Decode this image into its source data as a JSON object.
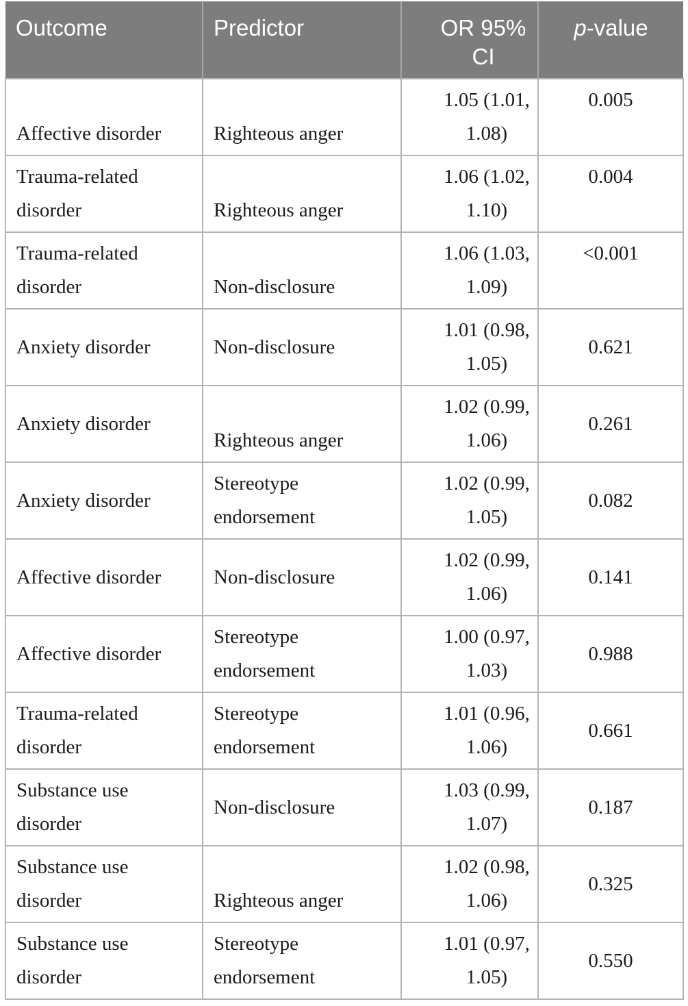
{
  "colors": {
    "header_bg": "#7d7d7d",
    "header_text": "#ffffff",
    "header_divider": "#a6a6a6",
    "body_text": "#1b1b1b",
    "border": "#b3b3b3",
    "page_bg": "#ffffff"
  },
  "table": {
    "headers": [
      {
        "lines": [
          "Outcome"
        ]
      },
      {
        "lines": [
          "Predictor"
        ]
      },
      {
        "lines": [
          "OR 95%",
          "CI"
        ]
      },
      {
        "italic_prefix": "p",
        "rest": "-value"
      }
    ],
    "row_cell_keys": [
      "outcome",
      "predictor",
      "or_ci",
      "p_value"
    ],
    "rows": [
      {
        "outcome": [
          "",
          "Affective disorder"
        ],
        "predictor": [
          "",
          "Righteous anger"
        ],
        "or_ci": [
          "1.05 (1.01,",
          "1.08)"
        ],
        "p_value": [
          "0.005",
          ""
        ]
      },
      {
        "outcome": [
          "Trauma-related",
          "disorder"
        ],
        "predictor": [
          "",
          "Righteous anger"
        ],
        "or_ci": [
          "1.06 (1.02,",
          "1.10)"
        ],
        "p_value": [
          "0.004",
          ""
        ]
      },
      {
        "outcome": [
          "Trauma-related",
          "disorder"
        ],
        "predictor": [
          "",
          "Non-disclosure"
        ],
        "or_ci": [
          "1.06 (1.03,",
          "1.09)"
        ],
        "p_value": [
          "<0.001",
          ""
        ]
      },
      {
        "outcome": [
          "Anxiety disorder"
        ],
        "predictor": [
          "Non-disclosure"
        ],
        "or_ci": [
          "1.01 (0.98,",
          "1.05)"
        ],
        "p_value": [
          "0.621"
        ]
      },
      {
        "outcome": [
          "Anxiety disorder"
        ],
        "predictor": [
          "",
          "Righteous anger"
        ],
        "or_ci": [
          "1.02 (0.99,",
          "1.06)"
        ],
        "p_value": [
          "0.261"
        ]
      },
      {
        "outcome": [
          "Anxiety disorder"
        ],
        "predictor": [
          "Stereotype",
          "endorsement"
        ],
        "or_ci": [
          "1.02 (0.99,",
          "1.05)"
        ],
        "p_value": [
          "0.082"
        ]
      },
      {
        "outcome": [
          "Affective disorder"
        ],
        "predictor": [
          "Non-disclosure"
        ],
        "or_ci": [
          "1.02 (0.99,",
          "1.06)"
        ],
        "p_value": [
          "0.141"
        ]
      },
      {
        "outcome": [
          "Affective disorder"
        ],
        "predictor": [
          "Stereotype",
          "endorsement"
        ],
        "or_ci": [
          "1.00 (0.97,",
          "1.03)"
        ],
        "p_value": [
          "0.988"
        ]
      },
      {
        "outcome": [
          "Trauma-related",
          "disorder"
        ],
        "predictor": [
          "Stereotype",
          "endorsement"
        ],
        "or_ci": [
          "1.01 (0.96,",
          "1.06)"
        ],
        "p_value": [
          "0.661"
        ]
      },
      {
        "outcome": [
          "Substance use",
          "disorder"
        ],
        "predictor": [
          "Non-disclosure"
        ],
        "or_ci": [
          "1.03 (0.99,",
          "1.07)"
        ],
        "p_value": [
          "0.187"
        ]
      },
      {
        "outcome": [
          "Substance use",
          "disorder"
        ],
        "predictor": [
          "",
          "Righteous anger"
        ],
        "or_ci": [
          "1.02 (0.98,",
          "1.06)"
        ],
        "p_value": [
          "0.325"
        ]
      },
      {
        "outcome": [
          "Substance use",
          "disorder"
        ],
        "predictor": [
          "Stereotype",
          "endorsement"
        ],
        "or_ci": [
          "1.01 (0.97,",
          "1.05)"
        ],
        "p_value": [
          "0.550"
        ]
      }
    ]
  },
  "chart_data": {
    "type": "table",
    "title": "",
    "columns": [
      "Outcome",
      "Predictor",
      "OR 95% CI",
      "p-value"
    ],
    "rows": [
      [
        "Affective disorder",
        "Righteous anger",
        "1.05 (1.01, 1.08)",
        "0.005"
      ],
      [
        "Trauma-related disorder",
        "Righteous anger",
        "1.06 (1.02, 1.10)",
        "0.004"
      ],
      [
        "Trauma-related disorder",
        "Non-disclosure",
        "1.06 (1.03, 1.09)",
        "<0.001"
      ],
      [
        "Anxiety disorder",
        "Non-disclosure",
        "1.01 (0.98, 1.05)",
        "0.621"
      ],
      [
        "Anxiety disorder",
        "Righteous anger",
        "1.02 (0.99, 1.06)",
        "0.261"
      ],
      [
        "Anxiety disorder",
        "Stereotype endorsement",
        "1.02 (0.99, 1.05)",
        "0.082"
      ],
      [
        "Affective disorder",
        "Non-disclosure",
        "1.02 (0.99, 1.06)",
        "0.141"
      ],
      [
        "Affective disorder",
        "Stereotype endorsement",
        "1.00 (0.97, 1.03)",
        "0.988"
      ],
      [
        "Trauma-related disorder",
        "Stereotype endorsement",
        "1.01 (0.96, 1.06)",
        "0.661"
      ],
      [
        "Substance use disorder",
        "Non-disclosure",
        "1.03 (0.99, 1.07)",
        "0.187"
      ],
      [
        "Substance use disorder",
        "Righteous anger",
        "1.02 (0.98, 1.06)",
        "0.325"
      ],
      [
        "Substance use disorder",
        "Stereotype endorsement",
        "1.01 (0.97, 1.05)",
        "0.550"
      ]
    ]
  }
}
